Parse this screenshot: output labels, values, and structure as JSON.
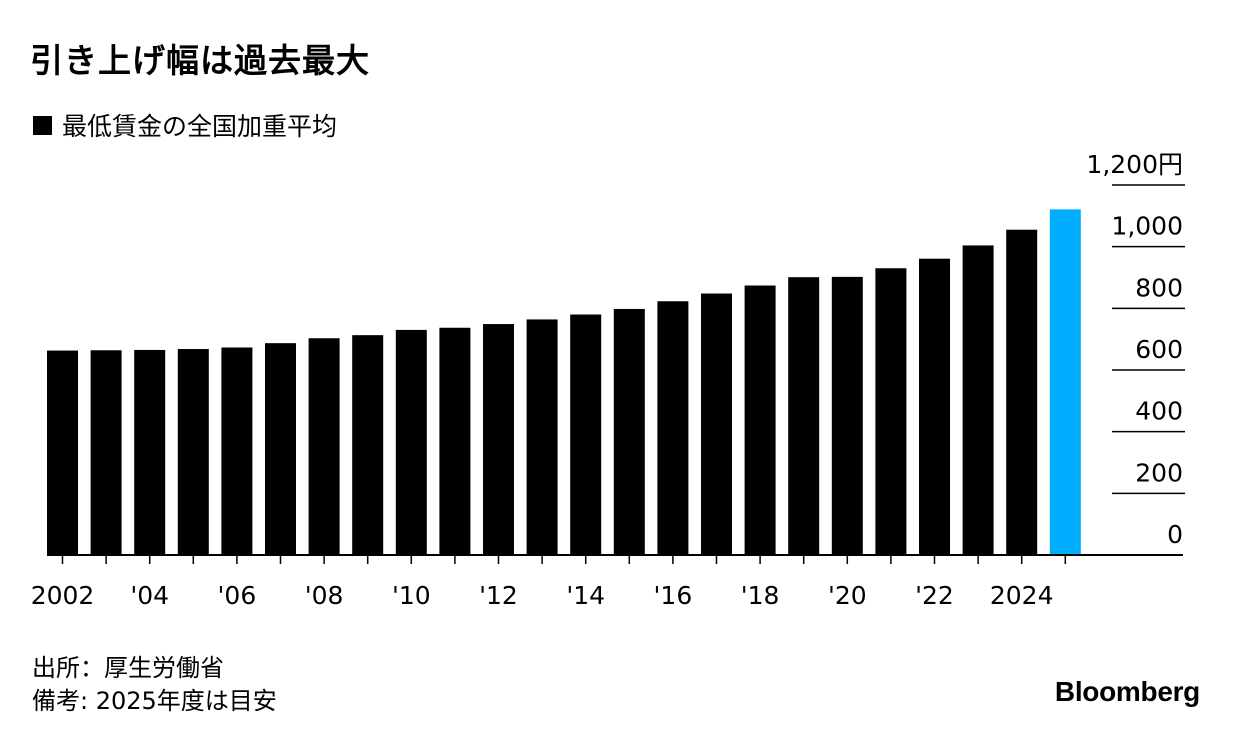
{
  "title": "引き上げ幅は過去最大",
  "legend": "最低賃金の全国加重平均",
  "source": "出所：厚生労働省",
  "note": "備考: 2025年度は目安",
  "brand": "Bloomberg",
  "colors": {
    "bar": "#000000",
    "highlight": "#00adff"
  },
  "chart_data": {
    "type": "bar",
    "categories": [
      "2002",
      "2003",
      "2004",
      "2005",
      "2006",
      "2007",
      "2008",
      "2009",
      "2010",
      "2011",
      "2012",
      "2013",
      "2014",
      "2015",
      "2016",
      "2017",
      "2018",
      "2019",
      "2020",
      "2021",
      "2022",
      "2023",
      "2024",
      "2025"
    ],
    "values": [
      663,
      664,
      665,
      668,
      673,
      687,
      703,
      713,
      730,
      737,
      749,
      764,
      780,
      798,
      823,
      848,
      874,
      901,
      902,
      930,
      961,
      1004,
      1055,
      1121
    ],
    "highlight_index": 23,
    "x_tick_labels": [
      {
        "index": 0,
        "label": "2002"
      },
      {
        "index": 2,
        "label": "'04"
      },
      {
        "index": 4,
        "label": "'06"
      },
      {
        "index": 6,
        "label": "'08"
      },
      {
        "index": 8,
        "label": "'10"
      },
      {
        "index": 10,
        "label": "'12"
      },
      {
        "index": 12,
        "label": "'14"
      },
      {
        "index": 14,
        "label": "'16"
      },
      {
        "index": 16,
        "label": "'18"
      },
      {
        "index": 18,
        "label": "'20"
      },
      {
        "index": 20,
        "label": "'22"
      },
      {
        "index": 22,
        "label": "2024"
      }
    ],
    "y_ticks": [
      0,
      200,
      400,
      600,
      800,
      1000,
      1200
    ],
    "y_tick_labels": [
      "0",
      "200",
      "400",
      "600",
      "800",
      "1,000",
      "1,200円"
    ],
    "ylim": [
      0,
      1200
    ],
    "grid": true,
    "y_axis_position": "right"
  }
}
